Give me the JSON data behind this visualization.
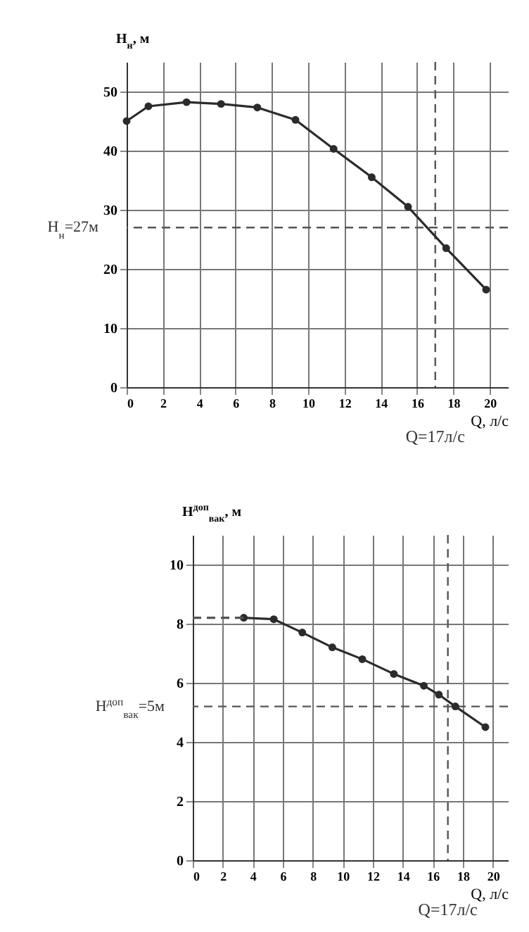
{
  "chart_data": [
    {
      "type": "line",
      "xlabel": "Q, л/с",
      "ylabel": "H$_{н}$, м",
      "xlim": [
        0,
        21
      ],
      "ylim": [
        0,
        55
      ],
      "xticks": [
        0,
        2,
        4,
        6,
        8,
        10,
        12,
        14,
        16,
        18,
        20
      ],
      "yticks": [
        0,
        10,
        20,
        30,
        40,
        50
      ],
      "grid": true,
      "marker": "circle",
      "series": [
        {
          "color": "#2b2b2b",
          "x": [
            0,
            1.2,
            3.3,
            5.2,
            7.2,
            9.3,
            11.4,
            13.5,
            15.5,
            17.6,
            19.8
          ],
          "values": [
            45,
            47.5,
            48.2,
            47.9,
            47.3,
            45.2,
            40.3,
            35.5,
            30.5,
            23.5,
            16.5
          ]
        }
      ],
      "ref_lines": [
        {
          "axis": "y",
          "value": 27,
          "label": "H$_{н}$=27м",
          "line_style": "dashed",
          "color": "#555555"
        },
        {
          "axis": "x",
          "value": 17,
          "label": "Q=17л/с",
          "line_style": "dashed",
          "color": "#555555"
        }
      ]
    },
    {
      "type": "line",
      "xlabel": "Q, л/с",
      "ylabel": "H$^{доп}$$_{вак}$, м",
      "xlim": [
        0,
        21
      ],
      "ylim": [
        0,
        11
      ],
      "xticks": [
        0,
        2,
        4,
        6,
        8,
        10,
        12,
        14,
        16,
        18,
        20
      ],
      "yticks": [
        0,
        2,
        4,
        6,
        8,
        10
      ],
      "grid": true,
      "marker": "circle",
      "series": [
        {
          "color": "#2b2b2b",
          "x": [
            3.4,
            5.4,
            7.3,
            9.3,
            11.3,
            13.4,
            15.4,
            16.4,
            17.5,
            19.5
          ],
          "values": [
            8.2,
            8.15,
            7.7,
            7.2,
            6.8,
            6.3,
            5.9,
            5.6,
            5.2,
            4.5
          ]
        },
        {
          "color": "#555555",
          "type": "line",
          "line_style": "dashed",
          "marker": "none",
          "x": [
            0,
            3.4
          ],
          "values": [
            8.2,
            8.2
          ]
        }
      ],
      "ref_lines": [
        {
          "axis": "y",
          "value": 5.2,
          "label": "H$^{доп}$$_{вак}$=5м",
          "line_style": "dashed",
          "color": "#555555"
        },
        {
          "axis": "x",
          "value": 17,
          "label": "Q=17л/с",
          "line_style": "dashed",
          "color": "#555555"
        }
      ]
    }
  ]
}
